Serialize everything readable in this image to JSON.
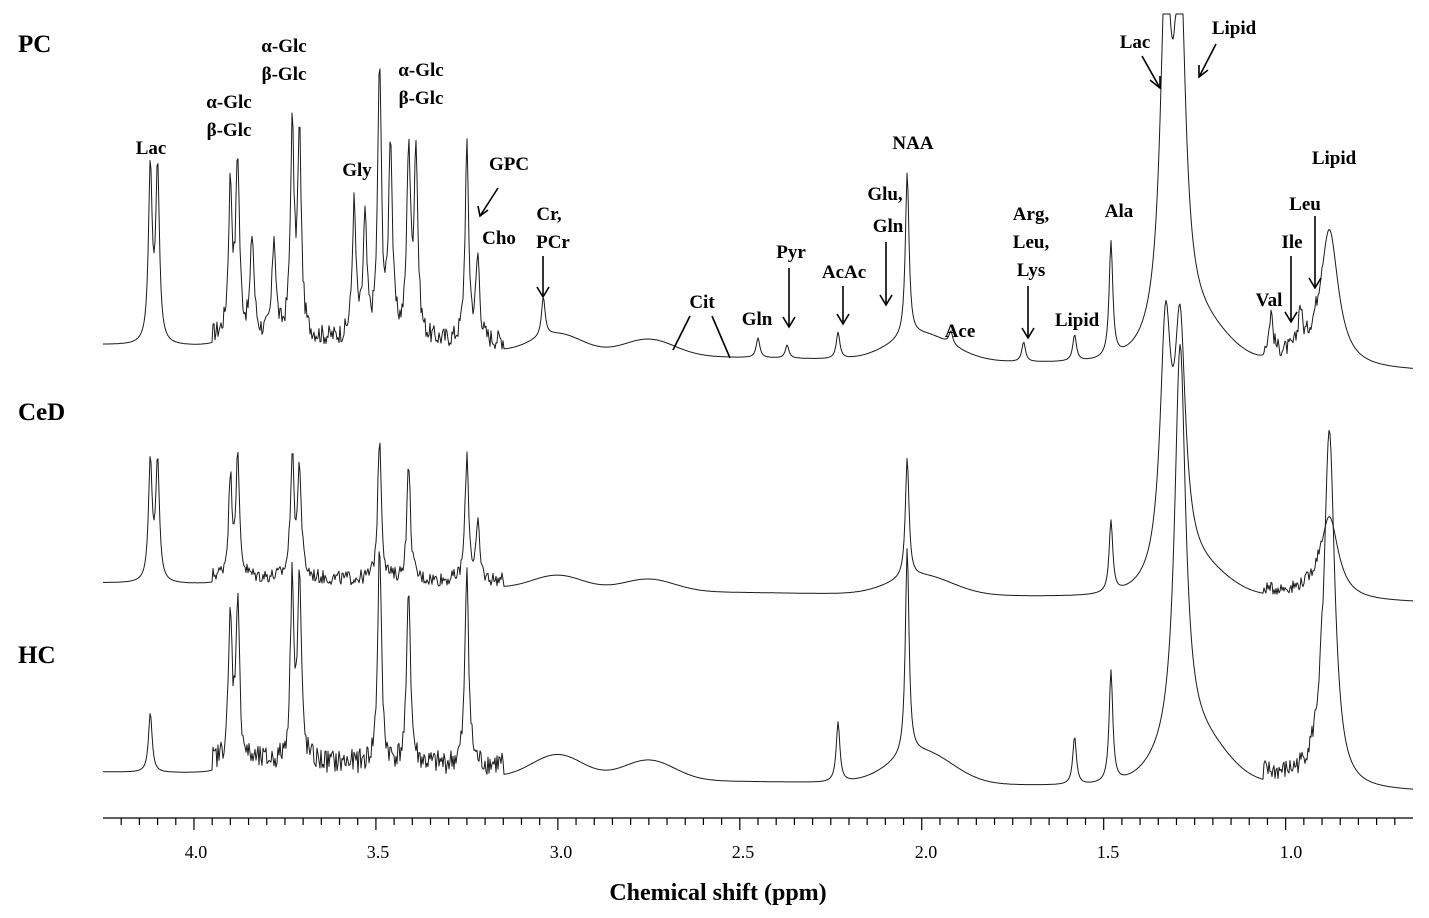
{
  "chart_data": {
    "type": "line",
    "xlabel": "Chemical shift (ppm)",
    "ylabel": "",
    "xlim": [
      4.25,
      0.65
    ],
    "x_reversed": true,
    "x_ticks": [
      "4.0",
      "3.5",
      "3.0",
      "2.5",
      "2.0",
      "1.5",
      "1.0"
    ],
    "series": [
      {
        "name": "PC",
        "peaks": [
          {
            "ppm": 4.12,
            "h": 0.53
          },
          {
            "ppm": 4.1,
            "h": 0.53
          },
          {
            "ppm": 3.9,
            "h": 0.45
          },
          {
            "ppm": 3.88,
            "h": 0.53
          },
          {
            "ppm": 3.84,
            "h": 0.3
          },
          {
            "ppm": 3.78,
            "h": 0.3
          },
          {
            "ppm": 3.73,
            "h": 0.62
          },
          {
            "ppm": 3.71,
            "h": 0.6
          },
          {
            "ppm": 3.56,
            "h": 0.4
          },
          {
            "ppm": 3.53,
            "h": 0.35
          },
          {
            "ppm": 3.49,
            "h": 0.82
          },
          {
            "ppm": 3.46,
            "h": 0.6
          },
          {
            "ppm": 3.41,
            "h": 0.57
          },
          {
            "ppm": 3.39,
            "h": 0.57
          },
          {
            "ppm": 3.25,
            "h": 0.58
          },
          {
            "ppm": 3.22,
            "h": 0.25
          },
          {
            "ppm": 3.04,
            "h": 0.12
          },
          {
            "ppm": 2.45,
            "h": 0.06
          },
          {
            "ppm": 2.37,
            "h": 0.04
          },
          {
            "ppm": 2.23,
            "h": 0.08
          },
          {
            "ppm": 2.04,
            "h": 0.5
          },
          {
            "ppm": 1.92,
            "h": 0.04
          },
          {
            "ppm": 1.72,
            "h": 0.06
          },
          {
            "ppm": 1.58,
            "h": 0.08
          },
          {
            "ppm": 1.48,
            "h": 0.35
          },
          {
            "ppm": 1.33,
            "h": 1.0
          },
          {
            "ppm": 1.29,
            "h": 1.0
          },
          {
            "ppm": 1.04,
            "h": 0.12
          },
          {
            "ppm": 0.96,
            "h": 0.12
          },
          {
            "ppm": 0.88,
            "h": 0.42
          }
        ]
      },
      {
        "name": "CeD",
        "peaks": [
          {
            "ppm": 4.12,
            "h": 0.5
          },
          {
            "ppm": 4.1,
            "h": 0.5
          },
          {
            "ppm": 3.9,
            "h": 0.4
          },
          {
            "ppm": 3.88,
            "h": 0.48
          },
          {
            "ppm": 3.73,
            "h": 0.5
          },
          {
            "ppm": 3.71,
            "h": 0.45
          },
          {
            "ppm": 3.49,
            "h": 0.6
          },
          {
            "ppm": 3.41,
            "h": 0.48
          },
          {
            "ppm": 3.25,
            "h": 0.52
          },
          {
            "ppm": 3.22,
            "h": 0.22
          },
          {
            "ppm": 2.04,
            "h": 0.5
          },
          {
            "ppm": 1.48,
            "h": 0.3
          },
          {
            "ppm": 1.33,
            "h": 1.0
          },
          {
            "ppm": 1.29,
            "h": 0.95
          },
          {
            "ppm": 0.88,
            "h": 0.35
          }
        ]
      },
      {
        "name": "HC",
        "peaks": [
          {
            "ppm": 4.12,
            "h": 0.15
          },
          {
            "ppm": 3.9,
            "h": 0.35
          },
          {
            "ppm": 3.88,
            "h": 0.4
          },
          {
            "ppm": 3.73,
            "h": 0.45
          },
          {
            "ppm": 3.71,
            "h": 0.45
          },
          {
            "ppm": 3.49,
            "h": 0.55
          },
          {
            "ppm": 3.41,
            "h": 0.45
          },
          {
            "ppm": 3.25,
            "h": 0.5
          },
          {
            "ppm": 2.04,
            "h": 0.52
          },
          {
            "ppm": 2.23,
            "h": 0.15
          },
          {
            "ppm": 1.58,
            "h": 0.12
          },
          {
            "ppm": 1.48,
            "h": 0.28
          },
          {
            "ppm": 1.29,
            "h": 1.0
          },
          {
            "ppm": 0.88,
            "h": 0.9
          }
        ]
      }
    ],
    "annotations": [
      {
        "text": "Lac",
        "ppm": 4.11
      },
      {
        "text": "α-Glc",
        "ppm": 3.89
      },
      {
        "text": "β-Glc",
        "ppm": 3.89
      },
      {
        "text": "α-Glc",
        "ppm": 3.74
      },
      {
        "text": "β-Glc",
        "ppm": 3.74
      },
      {
        "text": "Gly",
        "ppm": 3.56
      },
      {
        "text": "α-Glc",
        "ppm": 3.41
      },
      {
        "text": "β-Glc",
        "ppm": 3.41
      },
      {
        "text": "GPC",
        "ppm": 3.22
      },
      {
        "text": "Cho",
        "ppm": 3.2
      },
      {
        "text": "Cr,",
        "ppm": 3.04
      },
      {
        "text": "PCr",
        "ppm": 3.04
      },
      {
        "text": "Cit",
        "ppm": 2.6
      },
      {
        "text": "Gln",
        "ppm": 2.45
      },
      {
        "text": "Pyr",
        "ppm": 2.37
      },
      {
        "text": "AcAc",
        "ppm": 2.23
      },
      {
        "text": "NAA",
        "ppm": 2.04
      },
      {
        "text": "Glu,",
        "ppm": 2.1
      },
      {
        "text": "Gln",
        "ppm": 2.1
      },
      {
        "text": "Ace",
        "ppm": 1.92
      },
      {
        "text": "Arg,",
        "ppm": 1.72
      },
      {
        "text": "Leu,",
        "ppm": 1.72
      },
      {
        "text": "Lys",
        "ppm": 1.72
      },
      {
        "text": "Lipid",
        "ppm": 1.58
      },
      {
        "text": "Ala",
        "ppm": 1.48
      },
      {
        "text": "Lac",
        "ppm": 1.33
      },
      {
        "text": "Lipid",
        "ppm": 1.29
      },
      {
        "text": "Lipid",
        "ppm": 0.88
      },
      {
        "text": "Leu",
        "ppm": 0.95
      },
      {
        "text": "Ile",
        "ppm": 1.0
      },
      {
        "text": "Val",
        "ppm": 1.04
      }
    ],
    "grid": false
  }
}
